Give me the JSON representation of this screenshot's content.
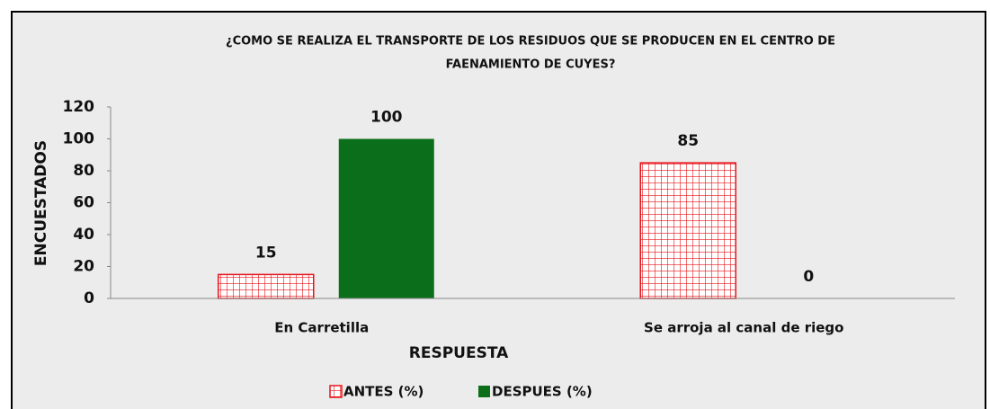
{
  "chart_data": {
    "type": "bar",
    "title": [
      "¿COMO SE REALIZA EL TRANSPORTE DE LOS RESIDUOS QUE SE PRODUCEN EN EL CENTRO DE",
      "FAENAMIENTO DE CUYES?"
    ],
    "xlabel": "RESPUESTA",
    "ylabel": "ENCUESTADOS",
    "categories": [
      "En Carretilla",
      "Se arroja al canal de riego"
    ],
    "series": [
      {
        "name": "ANTES (%)",
        "color": "#e8141b",
        "pattern": "grid",
        "values": [
          15,
          85
        ]
      },
      {
        "name": "DESPUES (%)",
        "color": "#0b6e1a",
        "values": [
          100,
          0
        ]
      }
    ],
    "ylim": [
      0,
      120
    ],
    "yticks": [
      0,
      20,
      40,
      60,
      80,
      100,
      120
    ],
    "legend": "bottom"
  }
}
